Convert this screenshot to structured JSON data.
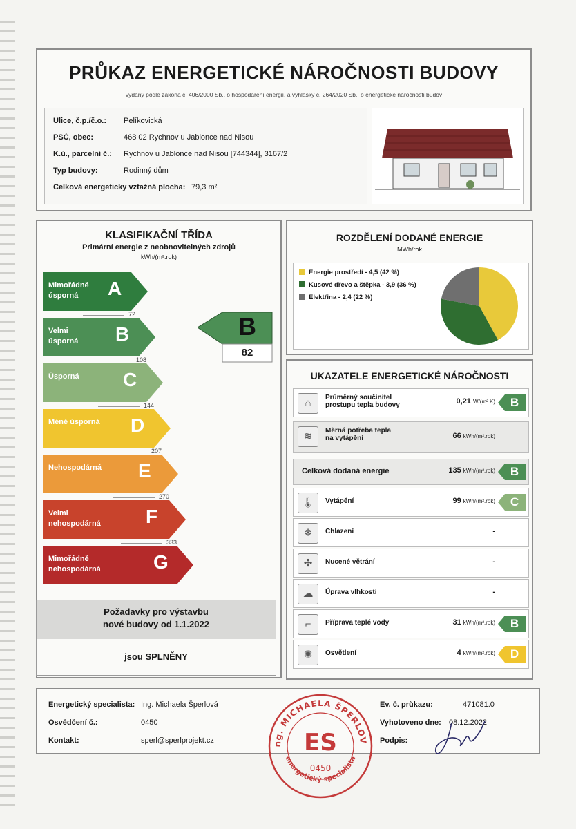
{
  "header": {
    "title": "PRŮKAZ ENERGETICKÉ NÁROČNOSTI BUDOVY",
    "subtitle": "vydaný podle zákona č. 406/2000 Sb., o hospodaření energií, a vyhlášky č. 264/2020 Sb., o energetické náročnosti budov"
  },
  "address": {
    "street_label": "Ulice, č.p./č.o.:",
    "street": "Pelíkovická",
    "psc_label": "PSČ, obec:",
    "psc": "468 02 Rychnov u Jablonce nad Nisou",
    "ku_label": "K.ú., parcelní č.:",
    "ku": "Rychnov u Jablonce nad Nisou [744344], 3167/2",
    "type_label": "Typ budovy:",
    "type": "Rodinný dům",
    "area_label": "Celková energeticky vztažná plocha:",
    "area": "79,3 m²"
  },
  "classification": {
    "title": "KLASIFIKAČNÍ TŘÍDA",
    "subtitle": "Primární energie z neobnovitelných zdrojů",
    "unit": "kWh/(m².rok)",
    "bands": [
      {
        "label1": "Mimořádně",
        "label2": "úsporná",
        "letter": "A",
        "color": "#2f7d3e",
        "threshold": "72"
      },
      {
        "label1": "Velmi",
        "label2": "úsporná",
        "letter": "B",
        "color": "#4c8f55",
        "threshold": "108"
      },
      {
        "label1": "Úsporná",
        "label2": "",
        "letter": "C",
        "color": "#8cb37a",
        "threshold": "144"
      },
      {
        "label1": "Méně úsporná",
        "label2": "",
        "letter": "D",
        "color": "#f0c52f",
        "threshold": "207"
      },
      {
        "label1": "Nehospodárná",
        "label2": "",
        "letter": "E",
        "color": "#eb9a3a",
        "threshold": "270"
      },
      {
        "label1": "Velmi",
        "label2": "nehospodárná",
        "letter": "F",
        "color": "#c8432c",
        "threshold": "333"
      },
      {
        "label1": "Mimořádně",
        "label2": "nehospodárná",
        "letter": "G",
        "color": "#b42a2a",
        "threshold": ""
      }
    ],
    "result_letter": "B",
    "result_value": "82",
    "result_color": "#4c8f55"
  },
  "requirements": {
    "line1": "Požadavky pro výstavbu",
    "line2": "nové budovy od 1.1.2022",
    "result": "jsou SPLNĚNY"
  },
  "distribution": {
    "title": "ROZDĚLENÍ DODANÉ ENERGIE",
    "unit": "MWh/rok",
    "items": [
      {
        "label": "Energie prostředí - 4,5 (42 %)",
        "value": 4.5,
        "percent": 42,
        "color": "#e8c93a"
      },
      {
        "label": "Kusové dřevo a štěpka - 3,9 (36 %)",
        "value": 3.9,
        "percent": 36,
        "color": "#2f6e31"
      },
      {
        "label": "Elektřina - 2,4 (22 %)",
        "value": 2.4,
        "percent": 22,
        "color": "#6f6f6f"
      }
    ]
  },
  "indicators": {
    "title": "UKAZATELE ENERGETICKÉ NÁROČNOSTI",
    "rows": [
      {
        "icon": "house-icon",
        "name1": "Průměrný součinitel",
        "name2": "prostupu tepla budovy",
        "value": "0,21",
        "unit": "W/(m².K)",
        "class": "B",
        "color": "#4c8f55"
      },
      {
        "icon": "heat-demand-icon",
        "name1": "Měrná potřeba tepla",
        "name2": "na vytápění",
        "value": "66",
        "unit": "kWh/(m².rok)",
        "class": "",
        "color": ""
      },
      {
        "icon": "",
        "name1": "Celková dodaná energie",
        "name2": "",
        "value": "135",
        "unit": "kWh/(m².rok)",
        "class": "B",
        "color": "#4c8f55"
      },
      {
        "icon": "thermometer-icon",
        "name1": "Vytápění",
        "name2": "",
        "value": "99",
        "unit": "kWh/(m².rok)",
        "class": "C",
        "color": "#8cb37a"
      },
      {
        "icon": "cooling-icon",
        "name1": "Chlazení",
        "name2": "",
        "value": "-",
        "unit": "",
        "class": "",
        "color": ""
      },
      {
        "icon": "fan-icon",
        "name1": "Nucené větrání",
        "name2": "",
        "value": "-",
        "unit": "",
        "class": "",
        "color": ""
      },
      {
        "icon": "humidity-icon",
        "name1": "Úprava vlhkosti",
        "name2": "",
        "value": "-",
        "unit": "",
        "class": "",
        "color": ""
      },
      {
        "icon": "faucet-icon",
        "name1": "Příprava teplé vody",
        "name2": "",
        "value": "31",
        "unit": "kWh/(m².rok)",
        "class": "B",
        "color": "#4c8f55"
      },
      {
        "icon": "bulb-icon",
        "name1": "Osvětlení",
        "name2": "",
        "value": "4",
        "unit": "kWh/(m².rok)",
        "class": "D",
        "color": "#f0c52f"
      }
    ]
  },
  "footer": {
    "specialist_label": "Energetický specialista:",
    "specialist": "Ing. Michaela Šperlová",
    "cert_label": "Osvědčení č.:",
    "cert": "0450",
    "contact_label": "Kontakt:",
    "contact": "sperl@sperlprojekt.cz",
    "evno_label": "Ev. č. průkazu:",
    "evno": "471081.0",
    "issued_label": "Vyhotoveno dne:",
    "issued": "08.12.2022",
    "sign_label": "Podpis:",
    "stamp_top": "Ing. MICHAELA ŠPERLOVÁ",
    "stamp_mid": "ES",
    "stamp_num": "0450",
    "stamp_bottom": "energetický specialista"
  }
}
